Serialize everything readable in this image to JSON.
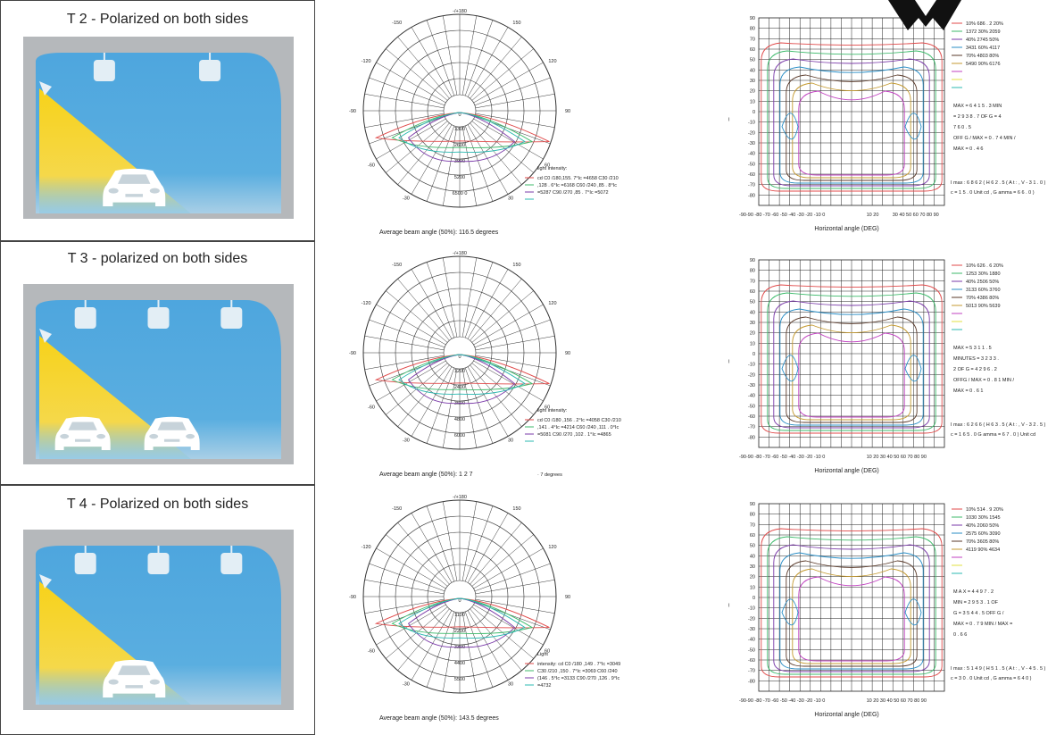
{
  "rows": [
    {
      "title": "T 2 - Polarized on both sides",
      "cars": 1,
      "lamps": 2,
      "polar": {
        "angles": [
          "-/+180",
          "150",
          "120",
          "90",
          "60",
          "30",
          "-150",
          "-120",
          "-90",
          "-60",
          "-30"
        ],
        "radial": [
          "0",
          "1300",
          "2600",
          "3900",
          "5200",
          "6500 0"
        ],
        "legend_title": "light intensity:",
        "legend": [
          "cd C0 /180,155. 7°Ic =4658 C30 /210",
          ",128 . 6°Ic =6168 C60 /240 ,85 . 8°Ic",
          "=5287 C90 /270 ,85 . 7°Ic =5072",
          ""
        ],
        "beam_caption": "Average beam angle (50%): 116.5 degrees",
        "beam_extra": ""
      },
      "iso": {
        "y_ticks": [
          "90",
          "80",
          "70",
          "60",
          "50",
          "40",
          "30",
          "20",
          "10",
          "0",
          "-10",
          "-20",
          "-30",
          "-40",
          "-50",
          "-60",
          "-70",
          "-80"
        ],
        "x_ticks": "-90-90 -80 -70 -60 -50 -40 -30 -20 -10 0",
        "x_ticks2": "10 20",
        "x_ticks3": "30 40 50 60 70 80 90",
        "x_label": "Horizontal angle (DEG)",
        "legend": [
          "10% 686 . 2 20%",
          "1372 30% 2059",
          "40% 2745 50%",
          "3431 60% 4117",
          "70% 4803 80%",
          "5490 90% 6176",
          "",
          "",
          ""
        ],
        "stats": [
          "MAX = 6 4 1 5 . 3 MIN",
          "= 2 9 3 8 . 7 OF G = 4",
          "7 6 0 . 5",
          "OFF G / MAX = 0 . 7 4 MIN /",
          "MAX = 0 . 4 6"
        ],
        "imax": [
          "I max : 6 8 6 2 ( H 6 2 . 5 ( A t : , V - 3 1 . 0 )",
          "c = 1 5 . 0 Unit cd , G amma = 6 6 . 0 )"
        ]
      }
    },
    {
      "title": "T 3 - polarized on both sides",
      "cars": 2,
      "lamps": 3,
      "polar": {
        "angles": [
          "-/+180",
          "150",
          "120",
          "90",
          "60",
          "30",
          "-150",
          "-120",
          "-90",
          "-60",
          "-30"
        ],
        "radial": [
          "0",
          "1200",
          "2400",
          "3600",
          "4800",
          "6000"
        ],
        "legend_title": "light intensity:",
        "legend": [
          "cd C0 /180 ,156 . 2°Ic =4058 C30 /210",
          ",141 . 4°Ic =4214 C60 /240 ,111 . 0°Ic",
          "=5081 C90 /270 ,102 . 1°Ic =4865",
          ""
        ],
        "beam_caption": "Average beam angle (50%): 1 2 7",
        "beam_extra": "· 7 degrees"
      },
      "iso": {
        "y_ticks": [
          "90",
          "80",
          "70",
          "60",
          "50",
          "40",
          "30",
          "20",
          "10",
          "0",
          "-10",
          "-20",
          "-30",
          "-40",
          "-50",
          "-60",
          "-70",
          "-80"
        ],
        "x_ticks": "-90-90 -80 -70 -60 -50 -40 -30 -20 -10 0",
        "x_ticks2": "10 20 30 40 50 60 70 80 90",
        "x_ticks3": "",
        "x_label": "Horizontal angle (DEG)",
        "legend": [
          "10% 626 . 6 20%",
          "1253 30% 1880",
          "40% 2506 50%",
          "3133 60% 3760",
          "70% 4386 80%",
          "5013 90% 5639",
          "",
          "",
          ""
        ],
        "stats": [
          "MAX = 5 3 1 1 . 5",
          "MINUTES = 3 2 3 3 .",
          "2 OF G = 4 2 9 6 . 2",
          "OFFG / MAX = 0 . 8 1 MIN /",
          "MAX = 0 . 6 1"
        ],
        "imax": [
          "I max : 6 2 6 6 ( H 6 3 . 5 ( A t : , V - 3 2 . 5 )",
          "c = 1 6 5 . 0 G amma = 6 7 . 0 ) Unit cd"
        ]
      }
    },
    {
      "title": "T 4 - Polarized on both sides",
      "cars": 1,
      "lamps": 3,
      "polar": {
        "angles": [
          "-/+180",
          "150",
          "120",
          "90",
          "60",
          "30",
          "-150",
          "-120",
          "-90",
          "-60",
          "-30"
        ],
        "radial": [
          "0",
          "1100",
          "2200",
          "3300",
          "4400",
          "5500"
        ],
        "legend_title": "Light",
        "legend": [
          "intensity: cd C0 /180 ,149 . 7°Ic =3049",
          "C30 /210 ,150 . 7°Ic =3069 C60 /240",
          "(146 . 5°Ic =3133 C90 /270 ,126 . 9°Ic",
          "=4732"
        ],
        "beam_caption": "Average beam angle (50%): 143.5 degrees",
        "beam_extra": ""
      },
      "iso": {
        "y_ticks": [
          "90",
          "80",
          "70",
          "60",
          "50",
          "40",
          "30",
          "20",
          "10",
          "0",
          "-10",
          "-20",
          "-30",
          "-40",
          "-50",
          "-60",
          "-70",
          "-80"
        ],
        "x_ticks": "-90-90 -80 -70 -60 -50 -40 -30 -20 -10 0",
        "x_ticks2": "10 20 30 40 50 60 70 80 90",
        "x_ticks3": "",
        "x_label": "Horizontal angle (DEG)",
        "legend": [
          "10% 514 . 9 20%",
          "1030 30% 1545",
          "40% 2060 50%",
          "2575 60% 3090",
          "70% 3605 80%",
          "4119 90% 4634",
          "",
          "",
          ""
        ],
        "stats": [
          "M A X = 4 4 9 7 . 2",
          "MIN = 2 9 5 3 . 1 OF",
          "G = 3 5 4 4 . 5 OFF G /",
          "MAX = 0 . 7 9 MIN / MAX =",
          "0 . 6 6"
        ],
        "imax": [
          "I max : 5 1 4 9 ( H 5 1 . 5 ( A t : , V - 4 5 . 5 )",
          "c = 3 0 . 0 Unit cd , G amma = 6 4 0 )"
        ]
      }
    }
  ],
  "colors": {
    "tunnel_blue": "#4ea6de",
    "tunnel_grey": "#b5b8bb",
    "beam_yellow": "#f7d21a",
    "curve_colors": [
      "#e04a4a",
      "#3cba6a",
      "#7a3aa8",
      "#2a8ec6",
      "#5a3a2a",
      "#c49a30",
      "#c040c0",
      "#e0e040",
      "#2bb8b0"
    ]
  }
}
